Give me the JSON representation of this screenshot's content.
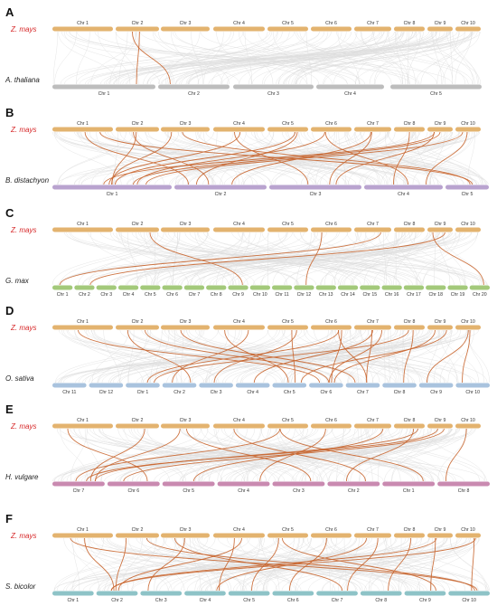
{
  "colors": {
    "ref_bar": "#E3B36F",
    "ref_species_text": "#D62728",
    "background_links": "#DDDDDD",
    "highlight_links": "#C8642C",
    "label_text": "#222222"
  },
  "reference": {
    "species": "Z. mays",
    "chromosomes": [
      "Chr 1",
      "Chr 2",
      "Chr 3",
      "Chr 4",
      "Chr 5",
      "Chr 6",
      "Chr 7",
      "Chr 8",
      "Chr 9",
      "Chr 10"
    ],
    "color": "#E3B36F"
  },
  "panels": [
    {
      "letter": "A",
      "species": "A. thaliana",
      "color": "#BDBDBD",
      "chromosomes": [
        "Chr 1",
        "Chr 2",
        "Chr 3",
        "Chr 4",
        "Chr 5"
      ],
      "highlights": [
        [
          1,
          0
        ],
        [
          1,
          1
        ]
      ]
    },
    {
      "letter": "B",
      "species": "B. distachyon",
      "color": "#B9A3CF",
      "chromosomes": [
        "Chr 1",
        "Chr 2",
        "Chr 3",
        "Chr 4",
        "Chr 5"
      ],
      "highlights": [
        [
          0,
          4
        ],
        [
          1,
          0
        ],
        [
          1,
          1
        ],
        [
          2,
          0
        ],
        [
          3,
          2
        ],
        [
          4,
          0
        ],
        [
          4,
          1
        ],
        [
          5,
          0
        ],
        [
          5,
          3
        ],
        [
          6,
          1
        ],
        [
          7,
          3
        ],
        [
          8,
          0
        ],
        [
          8,
          0
        ],
        [
          8,
          2
        ],
        [
          9,
          0
        ],
        [
          2,
          4
        ],
        [
          3,
          0
        ],
        [
          0,
          1
        ],
        [
          9,
          3
        ],
        [
          6,
          2
        ]
      ]
    },
    {
      "letter": "C",
      "species": "G. max",
      "color": "#A3C97A",
      "chromosomes": [
        "Chr 1",
        "Chr 2",
        "Chr 3",
        "Chr 4",
        "Chr 5",
        "Chr 6",
        "Chr 7",
        "Chr 8",
        "Chr 9",
        "Chr 10",
        "Chr 11",
        "Chr 12",
        "Chr 13",
        "Chr 14",
        "Chr 15",
        "Chr 16",
        "Chr 17",
        "Chr 18",
        "Chr 19",
        "Chr 20"
      ],
      "highlights": [
        [
          1,
          8
        ],
        [
          5,
          11
        ],
        [
          6,
          0
        ],
        [
          8,
          1
        ],
        [
          8,
          19
        ]
      ]
    },
    {
      "letter": "D",
      "species": "O. sativa",
      "color": "#A9C3DE",
      "chromosomes": [
        "Chr 11",
        "Chr 12",
        "Chr 1",
        "Chr 2",
        "Chr 3",
        "Chr 4",
        "Chr 5",
        "Chr 6",
        "Chr 7",
        "Chr 8",
        "Chr 9",
        "Chr 10"
      ],
      "highlights": [
        [
          0,
          7
        ],
        [
          1,
          7
        ],
        [
          2,
          8
        ],
        [
          3,
          3
        ],
        [
          4,
          4
        ],
        [
          4,
          6
        ],
        [
          5,
          2
        ],
        [
          5,
          7
        ],
        [
          6,
          5
        ],
        [
          6,
          8
        ],
        [
          7,
          2
        ],
        [
          7,
          9
        ],
        [
          8,
          7
        ],
        [
          8,
          6
        ],
        [
          9,
          11
        ],
        [
          9,
          10
        ],
        [
          1,
          3
        ],
        [
          3,
          6
        ],
        [
          6,
          7
        ],
        [
          5,
          8
        ]
      ]
    },
    {
      "letter": "E",
      "species": "H. vulgare",
      "color": "#C98AB0",
      "chromosomes": [
        "Chr 7",
        "Chr 6",
        "Chr 5",
        "Chr 4",
        "Chr 3",
        "Chr 2",
        "Chr 1",
        "Chr 8"
      ],
      "highlights": [
        [
          0,
          1
        ],
        [
          1,
          0
        ],
        [
          2,
          4
        ],
        [
          3,
          5
        ],
        [
          4,
          6
        ],
        [
          5,
          3
        ],
        [
          6,
          2
        ],
        [
          7,
          0
        ],
        [
          8,
          0
        ],
        [
          9,
          7
        ],
        [
          8,
          1
        ],
        [
          4,
          0
        ],
        [
          7,
          5
        ],
        [
          2,
          0
        ]
      ]
    },
    {
      "letter": "F",
      "species": "S. bicolor",
      "color": "#8EC3C7",
      "chromosomes": [
        "Chr 1",
        "Chr 2",
        "Chr 3",
        "Chr 4",
        "Chr 5",
        "Chr 6",
        "Chr 7",
        "Chr 8",
        "Chr 9",
        "Chr 10"
      ],
      "highlights": [
        [
          0,
          1
        ],
        [
          1,
          1
        ],
        [
          1,
          9
        ],
        [
          2,
          2
        ],
        [
          3,
          3
        ],
        [
          3,
          1
        ],
        [
          4,
          4
        ],
        [
          5,
          5
        ],
        [
          6,
          6
        ],
        [
          7,
          7
        ],
        [
          8,
          8
        ],
        [
          9,
          9
        ],
        [
          0,
          9
        ],
        [
          4,
          8
        ],
        [
          6,
          3
        ],
        [
          8,
          1
        ],
        [
          9,
          1
        ],
        [
          2,
          6
        ]
      ]
    }
  ]
}
